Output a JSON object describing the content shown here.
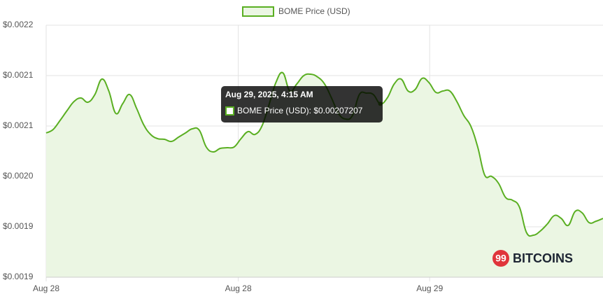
{
  "chart_data": {
    "type": "line",
    "series": [
      {
        "name": "BOME Price (USD)",
        "color": "#5aaf22",
        "fill": "#ebf6e3",
        "values": [
          0.00204305,
          0.00204652,
          0.00205555,
          0.00206527,
          0.00207429,
          0.00207777,
          0.0020736,
          0.00208124,
          0.00209652,
          0.00208471,
          0.00206249,
          0.00207221,
          0.00208124,
          0.00206735,
          0.00205138,
          0.00204166,
          0.00203749,
          0.0020368,
          0.00203471,
          0.00203888,
          0.00204305,
          0.00204721,
          0.00204582,
          0.00202916,
          0.0020243,
          0.00202777,
          0.00202846,
          0.00202916,
          0.00203749,
          0.00204444,
          0.00204166,
          0.00204999,
          0.00207082,
          0.00209304,
          0.00210276,
          0.00208471,
          0.00209165,
          0.00209999,
          0.00210138,
          0.0020986,
          0.00209165,
          0.00207777,
          0.00206249,
          0.00205693,
          0.00206041,
          0.00208124,
          0.00208263,
          0.00208124,
          0.00207207,
          0.00207777,
          0.00209165,
          0.00209652,
          0.00208471,
          0.0020861,
          0.00209721,
          0.00209304,
          0.00208332,
          0.00208471,
          0.00208471,
          0.00207429,
          0.00206041,
          0.00204999,
          0.00202916,
          0.00200138,
          0.00199999,
          0.00199305,
          0.00197916,
          0.00197638,
          0.00196944,
          0.00194444,
          0.00194166,
          0.00194583,
          0.00195277,
          0.00196111,
          0.00195833,
          0.00195139,
          0.00196527,
          0.00196388,
          0.00195416,
          0.00195555,
          0.00195833
        ]
      }
    ],
    "xlim": [
      0,
      80
    ],
    "xticks": [
      {
        "value": 0,
        "label": "Aug 28"
      },
      {
        "value": 27.6,
        "label": "Aug 28"
      },
      {
        "value": 55.1,
        "label": "Aug 29"
      }
    ],
    "ylim": [
      0.0019,
      0.00215
    ],
    "yticks": [
      {
        "value": 0.0019,
        "label": "$0.0019"
      },
      {
        "value": 0.00195,
        "label": "$0.0019"
      },
      {
        "value": 0.002,
        "label": "$0.0020"
      },
      {
        "value": 0.00205,
        "label": "$0.0021"
      },
      {
        "value": 0.0021,
        "label": "$0.0021"
      },
      {
        "value": 0.00215,
        "label": "$0.0022"
      }
    ],
    "grid": true,
    "legend": "top",
    "tooltip": {
      "index": 48,
      "title": "Aug 29, 2025, 4:15 AM",
      "text": "BOME Price (USD): $0.00207207"
    },
    "watermark": {
      "badge": "99",
      "text": "BITCOINS"
    }
  }
}
